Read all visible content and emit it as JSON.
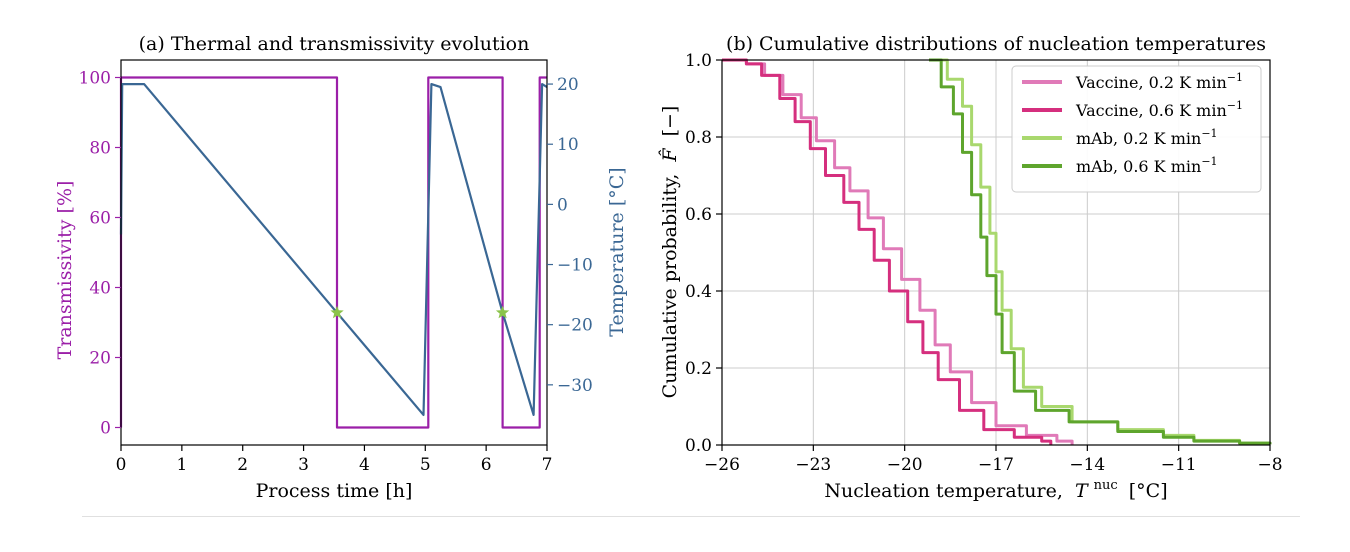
{
  "colors": {
    "transmissivity": "#9b1fa8",
    "temperature": "#3a6794",
    "star": "#8bc34a",
    "vaccine_slow": "#e07ab8",
    "vaccine_fast": "#d52f7e",
    "mab_slow": "#a9d86e",
    "mab_fast": "#5ea52d",
    "grid": "#cccccc"
  },
  "chart_data": [
    {
      "type": "line",
      "title": "(a) Thermal and transmissivity evolution",
      "xlabel": "Process time [h]",
      "ylabel": "Transmissivity [%]",
      "y2label": "Temperature [°C]",
      "xlim": [
        0,
        7
      ],
      "ylim": [
        -5,
        105
      ],
      "y2lim": [
        -40,
        24
      ],
      "xticks": [
        0,
        1,
        2,
        3,
        4,
        5,
        6,
        7
      ],
      "yticks": [
        0,
        20,
        40,
        60,
        80,
        100
      ],
      "y2ticks": [
        20,
        10,
        0,
        -10,
        -20,
        -30
      ],
      "y2ticklabels": [
        "20",
        "10",
        "0",
        "−10",
        "−20",
        "−30"
      ],
      "grid": false,
      "series": [
        {
          "axis": "left",
          "x": [
            0,
            0,
            3.55,
            3.55,
            5.05,
            5.05,
            6.27,
            6.27,
            6.88,
            6.88,
            7
          ],
          "values": [
            0,
            100,
            100,
            0,
            0,
            100,
            100,
            0,
            0,
            100,
            100
          ]
        },
        {
          "axis": "right",
          "x": [
            0,
            0.02,
            0.38,
            3.55,
            4.97,
            5.1,
            5.25,
            6.27,
            6.78,
            6.92,
            7
          ],
          "values": [
            -5,
            20,
            20,
            -18,
            -35,
            20,
            19.5,
            -18,
            -35,
            20,
            19.5
          ]
        }
      ],
      "markers": [
        {
          "x": 3.55,
          "y": -18,
          "axis": "right"
        },
        {
          "x": 6.27,
          "y": -18,
          "axis": "right"
        }
      ]
    },
    {
      "type": "line",
      "title": "(b) Cumulative distributions of nucleation temperatures",
      "xlabel": "Nucleation temperature,",
      "xlabel_symbol": "T",
      "xlabel_sup": "nuc",
      "xlabel_unit": "[°C]",
      "ylabel": "Cumulative probability,",
      "ylabel_symbol": "F̂",
      "ylabel_unit": "[−]",
      "xlim": [
        -26,
        -8
      ],
      "ylim": [
        0,
        1
      ],
      "xticks": [
        -26,
        -23,
        -20,
        -17,
        -14,
        -11,
        -8
      ],
      "xticklabels": [
        "−26",
        "−23",
        "−20",
        "−17",
        "−14",
        "−11",
        "−8"
      ],
      "yticks": [
        0,
        0.2,
        0.4,
        0.6,
        0.8,
        1.0
      ],
      "yticklabels": [
        "0.0",
        "0.2",
        "0.4",
        "0.6",
        "0.8",
        "1.0"
      ],
      "grid": true,
      "legend_position": "top-right",
      "series": [
        {
          "name": "Vaccine, 0.2 K min",
          "name_sup": "−1",
          "x": [
            -26,
            -25.2,
            -24.6,
            -24.0,
            -23.4,
            -22.9,
            -22.3,
            -21.8,
            -21.2,
            -20.7,
            -20.1,
            -19.5,
            -19.0,
            -18.5,
            -17.8,
            -17.0,
            -16.0,
            -15.0,
            -14.5
          ],
          "values": [
            1.0,
            0.99,
            0.96,
            0.91,
            0.85,
            0.79,
            0.72,
            0.66,
            0.59,
            0.51,
            0.43,
            0.35,
            0.26,
            0.19,
            0.11,
            0.05,
            0.025,
            0.01,
            0.0
          ]
        },
        {
          "name": "Vaccine, 0.6 K min",
          "name_sup": "−1",
          "x": [
            -26,
            -25.2,
            -24.7,
            -24.1,
            -23.6,
            -23.1,
            -22.6,
            -22.0,
            -21.5,
            -21.0,
            -20.5,
            -19.9,
            -19.4,
            -18.9,
            -18.2,
            -17.4,
            -16.4,
            -15.5,
            -15.2
          ],
          "values": [
            1.0,
            0.99,
            0.96,
            0.9,
            0.84,
            0.77,
            0.7,
            0.63,
            0.56,
            0.48,
            0.4,
            0.32,
            0.24,
            0.17,
            0.09,
            0.04,
            0.02,
            0.01,
            0.0
          ]
        },
        {
          "name": "mAb, 0.2 K min",
          "name_sup": "−1",
          "x": [
            -19.2,
            -18.6,
            -18.1,
            -17.8,
            -17.5,
            -17.2,
            -17.0,
            -16.8,
            -16.5,
            -16.1,
            -15.5,
            -14.5,
            -13.0,
            -11.5,
            -10.5,
            -9.0,
            -8.0
          ],
          "values": [
            1.0,
            0.95,
            0.88,
            0.78,
            0.67,
            0.55,
            0.45,
            0.35,
            0.25,
            0.15,
            0.1,
            0.06,
            0.04,
            0.025,
            0.012,
            0.005,
            0.002
          ]
        },
        {
          "name": "mAb, 0.6 K min",
          "name_sup": "−1",
          "x": [
            -19.2,
            -18.8,
            -18.4,
            -18.1,
            -17.8,
            -17.5,
            -17.3,
            -17.0,
            -16.8,
            -16.4,
            -15.7,
            -14.6,
            -13.0,
            -11.5,
            -10.5,
            -9.0,
            -8.0
          ],
          "values": [
            1.0,
            0.93,
            0.86,
            0.76,
            0.65,
            0.54,
            0.44,
            0.34,
            0.24,
            0.14,
            0.09,
            0.06,
            0.035,
            0.02,
            0.01,
            0.005,
            0.002
          ]
        }
      ]
    }
  ]
}
